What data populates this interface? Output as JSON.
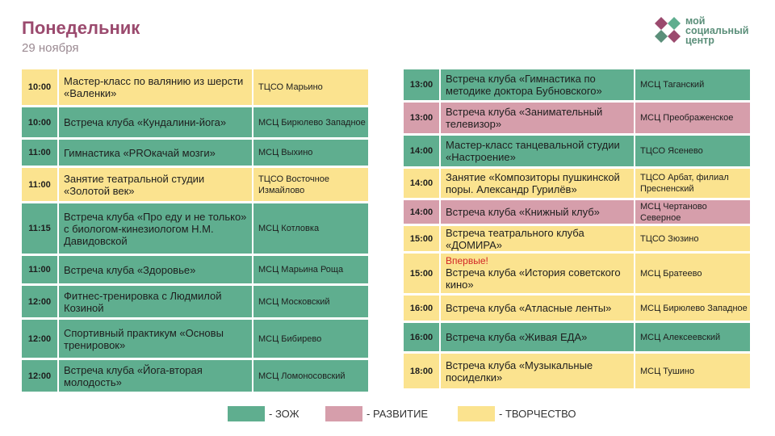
{
  "header": {
    "title": "Понедельник",
    "date": "29 ноября"
  },
  "logo": {
    "line1": "мой",
    "line2": "социальный",
    "line3": "центр",
    "colors": [
      "#9b4a6e",
      "#5fae8f",
      "#5b8f7a"
    ]
  },
  "colors": {
    "zozh": "#5fae8f",
    "razvitie": "#d69eab",
    "tvorchestvo": "#fbe38f"
  },
  "left": [
    {
      "time": "10:00",
      "event": "Мастер-класс по валянию из шерсти «Валенки»",
      "place": "ТЦСО Марьино",
      "type": "tvor",
      "h": 44
    },
    {
      "time": "10:00",
      "event": "Встреча клуба «Кундалини-йога»",
      "place": "МСЦ Бирюлево Западное",
      "type": "zozh",
      "h": 37
    },
    {
      "time": "11:00",
      "event": "Гимнастика «PROкачай мозги»",
      "place": "МСЦ Выхино",
      "type": "zozh",
      "h": 32
    },
    {
      "time": "11:00",
      "event": "Занятие театральной студии «Золотой век»",
      "place": "ТЦСО Восточное Измайлово",
      "type": "tvor",
      "h": 41
    },
    {
      "time": "11:15",
      "event": "Встреча клуба «Про еду и не только» с биологом-кинезиологом Н.М. Давидовской",
      "place": "МСЦ Котловка",
      "type": "zozh",
      "h": 62
    },
    {
      "time": "11:00",
      "event": "Встреча клуба «Здоровье»",
      "place": "МСЦ Марьина Роща",
      "type": "zozh",
      "h": 34
    },
    {
      "time": "12:00",
      "event": "Фитнес-тренировка с Людмилой Козиной",
      "place": "МСЦ Московский",
      "type": "zozh",
      "h": 39
    },
    {
      "time": "12:00",
      "event": "Спортивный практикум «Основы тренировок»",
      "place": "МСЦ Бибирево",
      "type": "zozh",
      "h": 47
    },
    {
      "time": "12:00",
      "event": "Встреча клуба «Йога-вторая молодость»",
      "place": "МСЦ Ломоносовский",
      "type": "zozh",
      "h": 39
    }
  ],
  "right": [
    {
      "time": "13:00",
      "event": "Встреча клуба «Гимнастика по методике доктора Бубновского»",
      "place": "МСЦ Таганский",
      "type": "zozh",
      "h": 38
    },
    {
      "time": "13:00",
      "event": "Встреча клуба «Занимательный телевизор»",
      "place": "МСЦ Преображенское",
      "type": "razv",
      "h": 38
    },
    {
      "time": "14:00",
      "event": "Мастер-класс танцевальной студии «Настроение»",
      "place": "ТЦСО Ясенево",
      "type": "zozh",
      "h": 38
    },
    {
      "time": "14:00",
      "event": "Занятие «Композиторы пушкинской поры. Александр Гурилёв»",
      "place": "ТЦСО Арбат, филиал Пресненский",
      "type": "tvor",
      "h": 36
    },
    {
      "time": "14:00",
      "event": "Встреча клуба «Книжный клуб»",
      "place": "МСЦ Чертаново Северное",
      "type": "razv",
      "h": 29
    },
    {
      "time": "15:00",
      "event": "Встреча театрального клуба «ДОМИРА»",
      "place": "ТЦСО Зюзино",
      "type": "tvor",
      "h": 31
    },
    {
      "time": "15:00",
      "new": "Впервые!",
      "event": "Встреча клуба «История советского кино»",
      "place": "МСЦ Братеево",
      "type": "tvor",
      "h": 49
    },
    {
      "time": "16:00",
      "event": "Встреча клуба «Атласные ленты»",
      "place": "МСЦ Бирюлево Западное",
      "type": "tvor",
      "h": 31
    },
    {
      "time": "16:00",
      "event": "Встреча клуба «Живая ЕДА»",
      "place": "МСЦ Алексеевский",
      "type": "zozh",
      "h": 35
    },
    {
      "time": "18:00",
      "event": "Встреча клуба «Музыкальные посиделки»",
      "place": "МСЦ Тушино",
      "type": "tvor",
      "h": 43
    }
  ],
  "legend": [
    {
      "label": "- ЗОЖ",
      "type": "zozh"
    },
    {
      "label": "- РАЗВИТИЕ",
      "type": "razv"
    },
    {
      "label": "- ТВОРЧЕСТВО",
      "type": "tvor"
    }
  ]
}
